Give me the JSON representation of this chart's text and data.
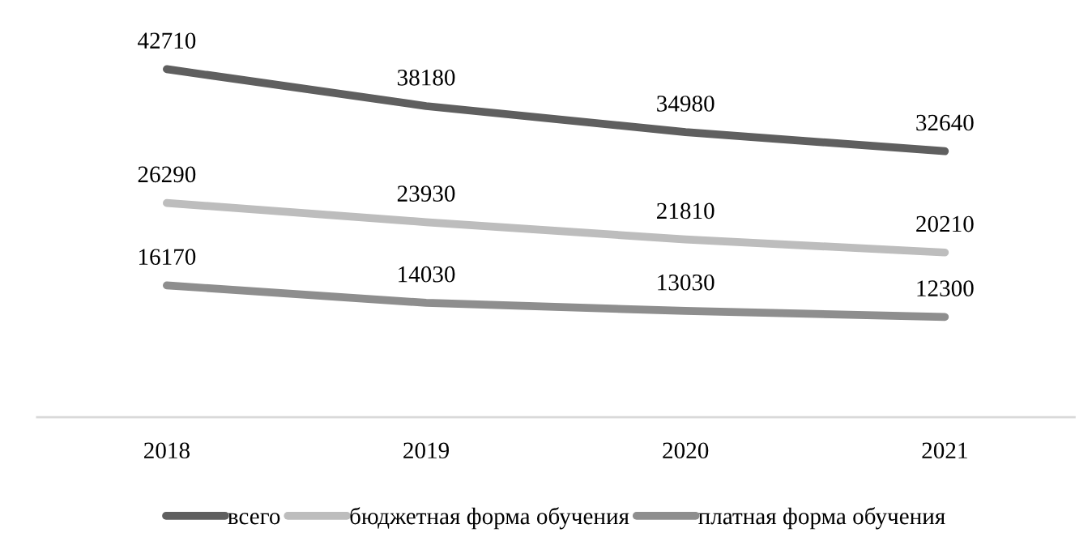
{
  "chart_data": {
    "type": "line",
    "categories": [
      "2018",
      "2019",
      "2020",
      "2021"
    ],
    "series": [
      {
        "name": "всего",
        "color": "#5f5f5f",
        "values": [
          42710,
          38180,
          34980,
          32640
        ]
      },
      {
        "name": "бюджетная форма обучения",
        "color": "#bdbdbd",
        "values": [
          26290,
          23930,
          21810,
          20210
        ]
      },
      {
        "name": "платная форма обучения",
        "color": "#8e8e8e",
        "values": [
          16170,
          14030,
          13030,
          12300
        ]
      }
    ],
    "tick_labels": "x",
    "data_labels": true,
    "legend": "bottom",
    "grid": false,
    "marker": "none",
    "line_style": "solid"
  }
}
